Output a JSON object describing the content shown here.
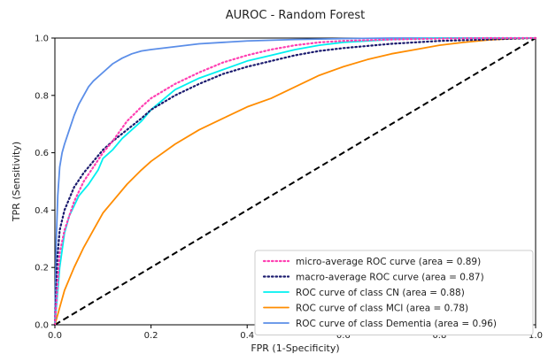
{
  "chart_data": {
    "type": "line",
    "title": "AUROC - Random Forest",
    "xlabel": "FPR (1-Specificity)",
    "ylabel": "TPR (Sensitivity)",
    "xlim": [
      0.0,
      1.0
    ],
    "ylim": [
      0.0,
      1.0
    ],
    "xticks": [
      "0.0",
      "0.2",
      "0.4",
      "0.6",
      "0.8",
      "1.0"
    ],
    "yticks": [
      "0.0",
      "0.2",
      "0.4",
      "0.6",
      "0.8",
      "1.0"
    ],
    "grid": false,
    "legend_position": "lower-right",
    "diagonal": {
      "x": [
        0,
        1
      ],
      "y": [
        0,
        1
      ],
      "color": "#000000",
      "style": "dashed"
    },
    "series": [
      {
        "name": "micro-average ROC curve (area = 0.89)",
        "color": "#ff3fb2",
        "style": "dotted",
        "x": [
          0.0,
          0.005,
          0.01,
          0.02,
          0.04,
          0.06,
          0.08,
          0.1,
          0.12,
          0.15,
          0.18,
          0.2,
          0.25,
          0.3,
          0.35,
          0.4,
          0.45,
          0.5,
          0.55,
          0.6,
          0.7,
          0.8,
          0.9,
          1.0
        ],
        "y": [
          0.0,
          0.13,
          0.25,
          0.33,
          0.43,
          0.5,
          0.55,
          0.6,
          0.64,
          0.71,
          0.76,
          0.79,
          0.84,
          0.88,
          0.915,
          0.94,
          0.96,
          0.975,
          0.985,
          0.99,
          0.995,
          0.998,
          1.0,
          1.0
        ]
      },
      {
        "name": "macro-average ROC curve (area = 0.87)",
        "color": "#1a1a6e",
        "style": "dotted",
        "x": [
          0.0,
          0.005,
          0.01,
          0.02,
          0.04,
          0.06,
          0.08,
          0.1,
          0.12,
          0.15,
          0.18,
          0.2,
          0.25,
          0.3,
          0.35,
          0.4,
          0.45,
          0.5,
          0.55,
          0.6,
          0.7,
          0.8,
          0.9,
          1.0
        ],
        "y": [
          0.0,
          0.23,
          0.33,
          0.4,
          0.48,
          0.53,
          0.57,
          0.61,
          0.64,
          0.68,
          0.72,
          0.75,
          0.8,
          0.84,
          0.875,
          0.9,
          0.92,
          0.94,
          0.955,
          0.965,
          0.98,
          0.99,
          0.995,
          1.0
        ]
      },
      {
        "name": "ROC curve of class CN (area = 0.88)",
        "color": "#00f0f0",
        "style": "solid",
        "x": [
          0.0,
          0.005,
          0.01,
          0.02,
          0.03,
          0.05,
          0.07,
          0.09,
          0.1,
          0.12,
          0.14,
          0.16,
          0.18,
          0.2,
          0.25,
          0.3,
          0.35,
          0.4,
          0.45,
          0.5,
          0.55,
          0.6,
          0.7,
          0.8,
          0.9,
          1.0
        ],
        "y": [
          0.0,
          0.1,
          0.2,
          0.32,
          0.38,
          0.45,
          0.49,
          0.54,
          0.58,
          0.61,
          0.65,
          0.68,
          0.71,
          0.75,
          0.82,
          0.86,
          0.89,
          0.92,
          0.94,
          0.96,
          0.975,
          0.985,
          0.995,
          1.0,
          1.0,
          1.0
        ]
      },
      {
        "name": "ROC curve of class MCI (area = 0.78)",
        "color": "#ff8c00",
        "style": "solid",
        "x": [
          0.0,
          0.01,
          0.02,
          0.04,
          0.06,
          0.08,
          0.1,
          0.12,
          0.15,
          0.18,
          0.2,
          0.25,
          0.3,
          0.35,
          0.4,
          0.45,
          0.5,
          0.55,
          0.6,
          0.65,
          0.7,
          0.75,
          0.8,
          0.85,
          0.9,
          0.95,
          1.0
        ],
        "y": [
          0.0,
          0.06,
          0.12,
          0.2,
          0.27,
          0.33,
          0.39,
          0.43,
          0.49,
          0.54,
          0.57,
          0.63,
          0.68,
          0.72,
          0.76,
          0.79,
          0.83,
          0.87,
          0.9,
          0.925,
          0.945,
          0.96,
          0.975,
          0.985,
          0.993,
          0.998,
          1.0
        ]
      },
      {
        "name": "ROC curve of class Dementia (area = 0.96)",
        "color": "#5b8ee8",
        "style": "solid",
        "x": [
          0.0,
          0.003,
          0.006,
          0.01,
          0.015,
          0.02,
          0.03,
          0.04,
          0.05,
          0.06,
          0.07,
          0.08,
          0.1,
          0.12,
          0.14,
          0.16,
          0.18,
          0.2,
          0.25,
          0.3,
          0.4,
          0.5,
          0.6,
          0.7,
          0.8,
          1.0
        ],
        "y": [
          0.0,
          0.3,
          0.45,
          0.55,
          0.6,
          0.63,
          0.68,
          0.73,
          0.77,
          0.8,
          0.83,
          0.85,
          0.88,
          0.91,
          0.93,
          0.945,
          0.955,
          0.96,
          0.97,
          0.98,
          0.99,
          0.995,
          0.998,
          1.0,
          1.0,
          1.0
        ]
      }
    ]
  }
}
